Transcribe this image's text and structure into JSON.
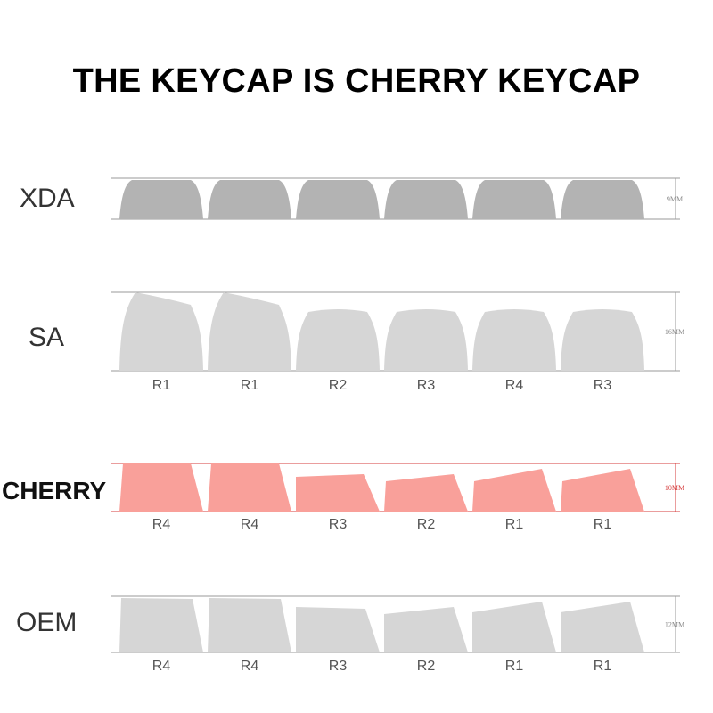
{
  "title": "THE KEYCAP IS CHERRY KEYCAP",
  "colors": {
    "gray_dark": "#b3b3b3",
    "gray_light": "#d6d6d6",
    "highlight": "#f9a09a",
    "line": "#9a9a9a",
    "highlight_line": "#d63b3b"
  },
  "profiles": [
    {
      "name": "XDA",
      "height_label": "9MM",
      "highlighted": false,
      "fill": "gray_dark",
      "row_labels": [],
      "keys": [
        {
          "shape": "xda"
        },
        {
          "shape": "xda"
        },
        {
          "shape": "xda"
        },
        {
          "shape": "xda"
        },
        {
          "shape": "xda"
        },
        {
          "shape": "xda"
        }
      ]
    },
    {
      "name": "SA",
      "height_label": "16MM",
      "highlighted": false,
      "fill": "gray_light",
      "row_labels": [
        "R1",
        "R1",
        "R2",
        "R3",
        "R4",
        "R3"
      ],
      "keys": [
        {
          "shape": "sa-r1"
        },
        {
          "shape": "sa-r1"
        },
        {
          "shape": "sa-flat"
        },
        {
          "shape": "sa-flat"
        },
        {
          "shape": "sa-flat"
        },
        {
          "shape": "sa-flat"
        }
      ]
    },
    {
      "name": "CHERRY",
      "height_label": "10MM",
      "highlighted": true,
      "fill": "highlight",
      "row_labels": [
        "R4",
        "R4",
        "R3",
        "R2",
        "R1",
        "R1"
      ],
      "keys": [
        {
          "shape": "cherry-r4"
        },
        {
          "shape": "cherry-r4"
        },
        {
          "shape": "cherry-r3"
        },
        {
          "shape": "cherry-r2"
        },
        {
          "shape": "cherry-r1"
        },
        {
          "shape": "cherry-r1"
        }
      ]
    },
    {
      "name": "OEM",
      "height_label": "12MM",
      "highlighted": false,
      "fill": "gray_light",
      "row_labels": [
        "R4",
        "R4",
        "R3",
        "R2",
        "R1",
        "R1"
      ],
      "keys": [
        {
          "shape": "oem-r4"
        },
        {
          "shape": "oem-r4"
        },
        {
          "shape": "oem-r3"
        },
        {
          "shape": "oem-r2"
        },
        {
          "shape": "oem-r1"
        },
        {
          "shape": "oem-r1"
        }
      ]
    }
  ]
}
